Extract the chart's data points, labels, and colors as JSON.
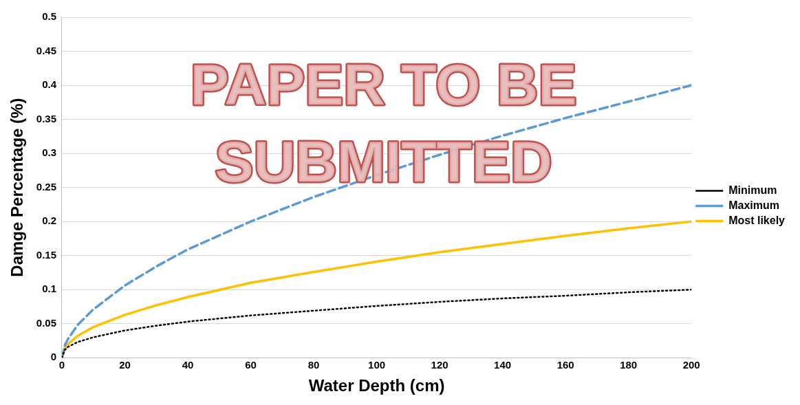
{
  "chart_data": {
    "type": "line",
    "xlabel": "Water Depth (cm)",
    "ylabel": "Damge Percentage (%)",
    "x": [
      0,
      1,
      2,
      5,
      10,
      20,
      30,
      40,
      60,
      80,
      100,
      120,
      140,
      160,
      180,
      200
    ],
    "series": [
      {
        "name": "Minimum",
        "color": "#000000",
        "line_style": "dotted",
        "values": [
          0,
          0.012,
          0.016,
          0.023,
          0.03,
          0.04,
          0.047,
          0.053,
          0.062,
          0.069,
          0.076,
          0.082,
          0.087,
          0.091,
          0.096,
          0.1
        ]
      },
      {
        "name": "Maximum",
        "color": "#5b9bd5",
        "line_style": "dashed",
        "values": [
          0,
          0.019,
          0.028,
          0.048,
          0.071,
          0.106,
          0.134,
          0.159,
          0.2,
          0.236,
          0.268,
          0.298,
          0.326,
          0.352,
          0.376,
          0.4
        ]
      },
      {
        "name": "Most likely",
        "color": "#ffc000",
        "line_style": "solid",
        "values": [
          0,
          0.014,
          0.02,
          0.032,
          0.045,
          0.063,
          0.077,
          0.089,
          0.11,
          0.126,
          0.141,
          0.155,
          0.167,
          0.179,
          0.19,
          0.2
        ]
      }
    ],
    "xlim": [
      0,
      200
    ],
    "xticks": [
      0,
      20,
      40,
      60,
      80,
      100,
      120,
      140,
      160,
      180,
      200
    ],
    "ylim": [
      0,
      0.5
    ],
    "yticks": [
      0,
      0.05,
      0.1,
      0.15,
      0.2,
      0.25,
      0.3,
      0.35,
      0.4,
      0.45,
      0.5
    ],
    "grid": "y",
    "legend": "right",
    "marker": "none",
    "annotations": [
      "PAPER TO BE SUBMITTED"
    ]
  }
}
